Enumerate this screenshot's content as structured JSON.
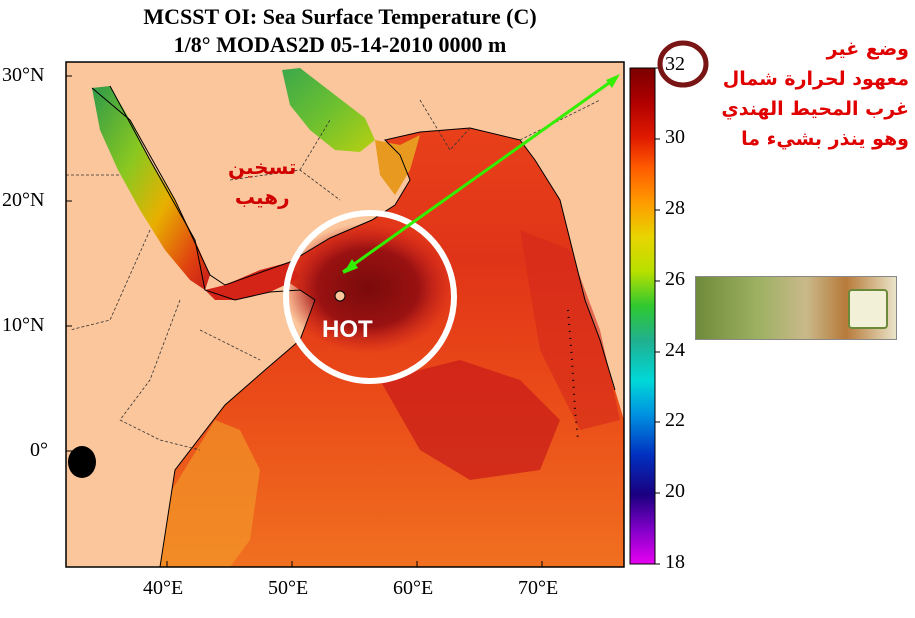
{
  "title_line1": "MCSST OI:  Sea Surface Temperature (C)",
  "title_line2": "1/8° MODAS2D 05-14-2010 0000 m",
  "lat_ticks": [
    "30°N",
    "20°N",
    "10°N",
    "0°"
  ],
  "lon_ticks": [
    "40°E",
    "50°E",
    "60°E",
    "70°E"
  ],
  "colorbar_ticks": [
    "32",
    "30",
    "28",
    "26",
    "24",
    "22",
    "20",
    "18"
  ],
  "colorbar_top_value": "32",
  "colorbar_range": [
    18,
    32
  ],
  "arabic_note_lines": [
    "وضع غير",
    "معهود لحرارة شمال",
    "غرب المحيط الهندي",
    "وهو ينذر بشيء ما"
  ],
  "arabic_heat_lines": [
    "تسخين",
    "رهيب"
  ],
  "hot_label": "HOT",
  "colors": {
    "land": "#fbc69b",
    "annotation": "#e00000",
    "arrow": "#33ee00",
    "highlight_circle": "#ffffff",
    "value_circle": "#7a1515"
  },
  "legend_entries": [],
  "map_layers": [
    "land",
    "sea-surface-temperature",
    "country-borders",
    "coastline"
  ]
}
